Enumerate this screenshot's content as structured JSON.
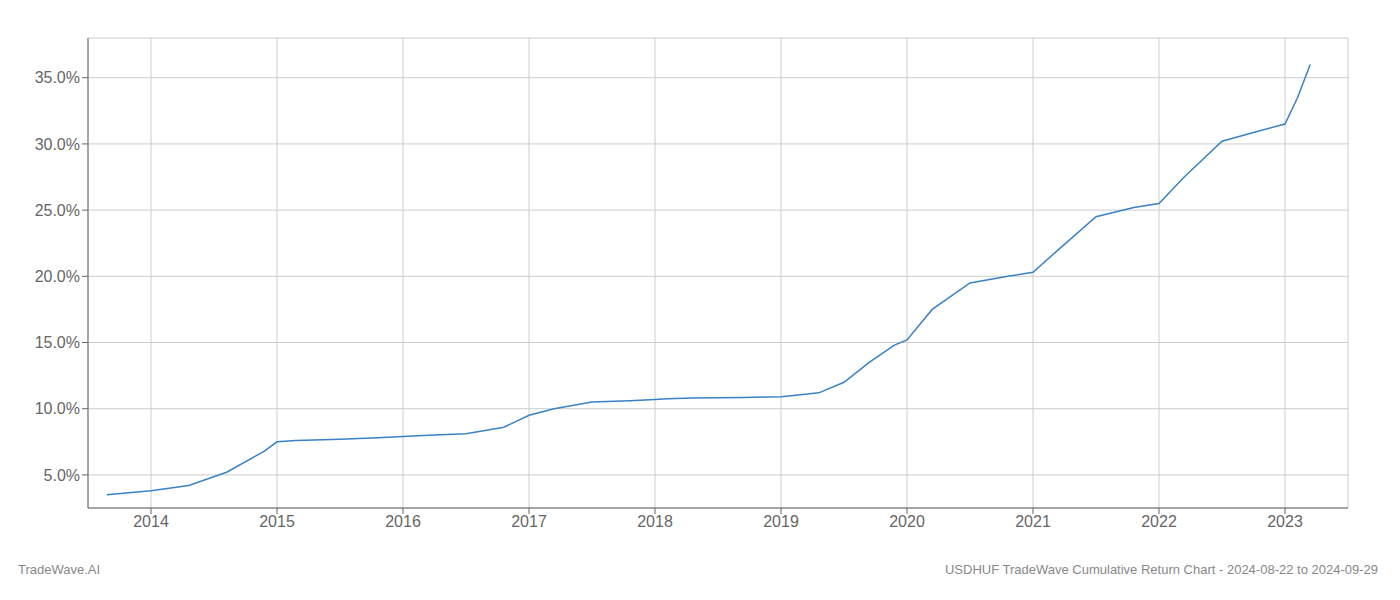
{
  "chart_data": {
    "type": "line",
    "x": [
      2013.65,
      2014.0,
      2014.3,
      2014.6,
      2014.9,
      2015.0,
      2015.15,
      2015.5,
      2015.8,
      2016.0,
      2016.2,
      2016.5,
      2016.8,
      2017.0,
      2017.2,
      2017.5,
      2017.8,
      2018.0,
      2018.1,
      2018.3,
      2018.5,
      2018.7,
      2018.9,
      2019.0,
      2019.1,
      2019.3,
      2019.5,
      2019.7,
      2019.9,
      2020.0,
      2020.2,
      2020.5,
      2020.8,
      2021.0,
      2021.2,
      2021.5,
      2021.8,
      2022.0,
      2022.2,
      2022.5,
      2022.8,
      2023.0,
      2023.1,
      2023.2
    ],
    "values": [
      3.5,
      3.8,
      4.2,
      5.2,
      6.8,
      7.5,
      7.6,
      7.7,
      7.8,
      7.9,
      8.0,
      8.1,
      8.6,
      9.5,
      10.0,
      10.5,
      10.6,
      10.7,
      10.75,
      10.8,
      10.82,
      10.85,
      10.88,
      10.9,
      11.0,
      11.2,
      12.0,
      13.5,
      14.8,
      15.2,
      17.5,
      19.5,
      20.0,
      20.3,
      22.0,
      24.5,
      25.2,
      25.5,
      27.5,
      30.2,
      31.0,
      31.5,
      33.5,
      36.0
    ],
    "color": "#3a82c4",
    "xlim": [
      2013.5,
      2023.5
    ],
    "xticks": [
      2014,
      2015,
      2016,
      2017,
      2018,
      2019,
      2020,
      2021,
      2022,
      2023
    ],
    "ylim": [
      2.5,
      38.0
    ],
    "yticks": [
      {
        "value": 5.0,
        "label": "5.0%"
      },
      {
        "value": 10.0,
        "label": "10.0%"
      },
      {
        "value": 15.0,
        "label": "15.0%"
      },
      {
        "value": 20.0,
        "label": "20.0%"
      },
      {
        "value": 25.0,
        "label": "25.0%"
      },
      {
        "value": 30.0,
        "label": "30.0%"
      },
      {
        "value": 35.0,
        "label": "35.0%"
      }
    ],
    "grid": true,
    "annotations": [
      "TradeWave.AI",
      "USDHUF TradeWave Cumulative Return Chart - 2024-08-22 to 2024-09-29"
    ]
  }
}
